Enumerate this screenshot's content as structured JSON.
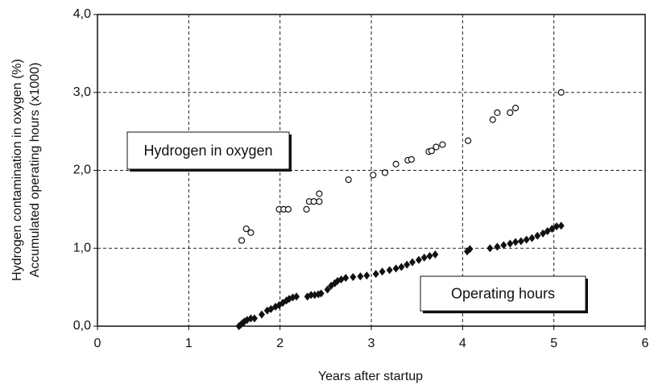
{
  "chart_data": {
    "type": "scatter",
    "xlabel": "Years after startup",
    "ylabel": [
      "Hydrogen contamination in oxygen (%)",
      "Accumulated operating hours (x1000)"
    ],
    "xlim": [
      0,
      6
    ],
    "xticks": [
      0,
      1,
      2,
      3,
      4,
      5,
      6
    ],
    "ylim": [
      0,
      4
    ],
    "yticks": [
      {
        "value": 0,
        "label": "0,0"
      },
      {
        "value": 1,
        "label": "1,0"
      },
      {
        "value": 2,
        "label": "2,0"
      },
      {
        "value": 3,
        "label": "3,0"
      },
      {
        "value": 4,
        "label": "4,0"
      }
    ],
    "grid": true,
    "series": [
      {
        "name": "Hydrogen in oxygen",
        "marker": "open-circle",
        "color": "#111",
        "x": [
          1.58,
          1.63,
          1.68,
          1.99,
          2.04,
          2.09,
          2.29,
          2.32,
          2.37,
          2.43,
          2.43,
          2.75,
          3.02,
          3.15,
          3.27,
          3.4,
          3.44,
          3.63,
          3.66,
          3.71,
          3.78,
          4.06,
          4.33,
          4.38,
          4.52,
          4.58,
          5.08
        ],
        "values": [
          1.1,
          1.25,
          1.2,
          1.5,
          1.5,
          1.5,
          1.5,
          1.6,
          1.6,
          1.7,
          1.6,
          1.88,
          1.94,
          1.97,
          2.08,
          2.13,
          2.14,
          2.24,
          2.25,
          2.3,
          2.33,
          2.38,
          2.65,
          2.74,
          2.74,
          2.8,
          3.0
        ]
      },
      {
        "name": "Operating hours",
        "marker": "diamond",
        "color": "#111",
        "x": [
          1.55,
          1.57,
          1.59,
          1.61,
          1.64,
          1.68,
          1.72,
          1.8,
          1.86,
          1.9,
          1.95,
          1.99,
          2.03,
          2.07,
          2.1,
          2.14,
          2.18,
          2.3,
          2.34,
          2.38,
          2.42,
          2.45,
          2.52,
          2.56,
          2.6,
          2.63,
          2.67,
          2.72,
          2.8,
          2.88,
          2.95,
          3.05,
          3.12,
          3.2,
          3.27,
          3.33,
          3.39,
          3.45,
          3.52,
          3.58,
          3.64,
          3.7,
          4.05,
          4.08,
          4.3,
          4.38,
          4.45,
          4.52,
          4.58,
          4.64,
          4.7,
          4.76,
          4.82,
          4.88,
          4.93,
          4.98,
          5.03,
          5.08
        ],
        "values": [
          0.0,
          0.02,
          0.04,
          0.06,
          0.08,
          0.1,
          0.1,
          0.15,
          0.2,
          0.22,
          0.25,
          0.27,
          0.3,
          0.33,
          0.35,
          0.37,
          0.38,
          0.38,
          0.4,
          0.4,
          0.41,
          0.42,
          0.47,
          0.52,
          0.55,
          0.58,
          0.6,
          0.62,
          0.63,
          0.64,
          0.65,
          0.67,
          0.7,
          0.72,
          0.74,
          0.76,
          0.79,
          0.82,
          0.85,
          0.88,
          0.9,
          0.92,
          0.96,
          0.99,
          1.0,
          1.02,
          1.04,
          1.06,
          1.08,
          1.09,
          1.11,
          1.13,
          1.16,
          1.19,
          1.22,
          1.25,
          1.28,
          1.29
        ]
      }
    ]
  }
}
